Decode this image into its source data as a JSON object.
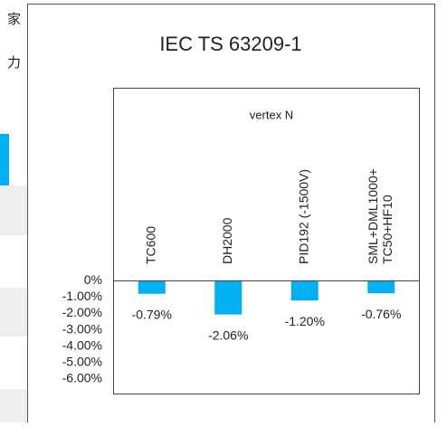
{
  "side_fragments": [
    "家",
    "力"
  ],
  "chart_data": {
    "type": "bar",
    "title": "IEC TS 63209-1",
    "subtitle": "vertex N",
    "categories": [
      "TC600",
      "DH2000",
      "PID192 (-1500V)",
      [
        "SML+DML1000+",
        "TC50+HF10"
      ]
    ],
    "values": [
      -0.79,
      -2.06,
      -1.2,
      -0.76
    ],
    "value_labels": [
      "-0.79%",
      "-2.06%",
      "-1.20%",
      "-0.76%"
    ],
    "color": "#00b0f0",
    "ylim": [
      -6.94,
      11.83
    ],
    "yticks": [
      {
        "value": 0,
        "label": "0%"
      },
      {
        "value": -1,
        "label": "-1.00%"
      },
      {
        "value": -2,
        "label": "-2.00%"
      },
      {
        "value": -3,
        "label": "-3.00%"
      },
      {
        "value": -4,
        "label": "-4.00%"
      },
      {
        "value": -5,
        "label": "-5.00%"
      },
      {
        "value": -6,
        "label": "-6.00%"
      }
    ],
    "grid": false
  }
}
